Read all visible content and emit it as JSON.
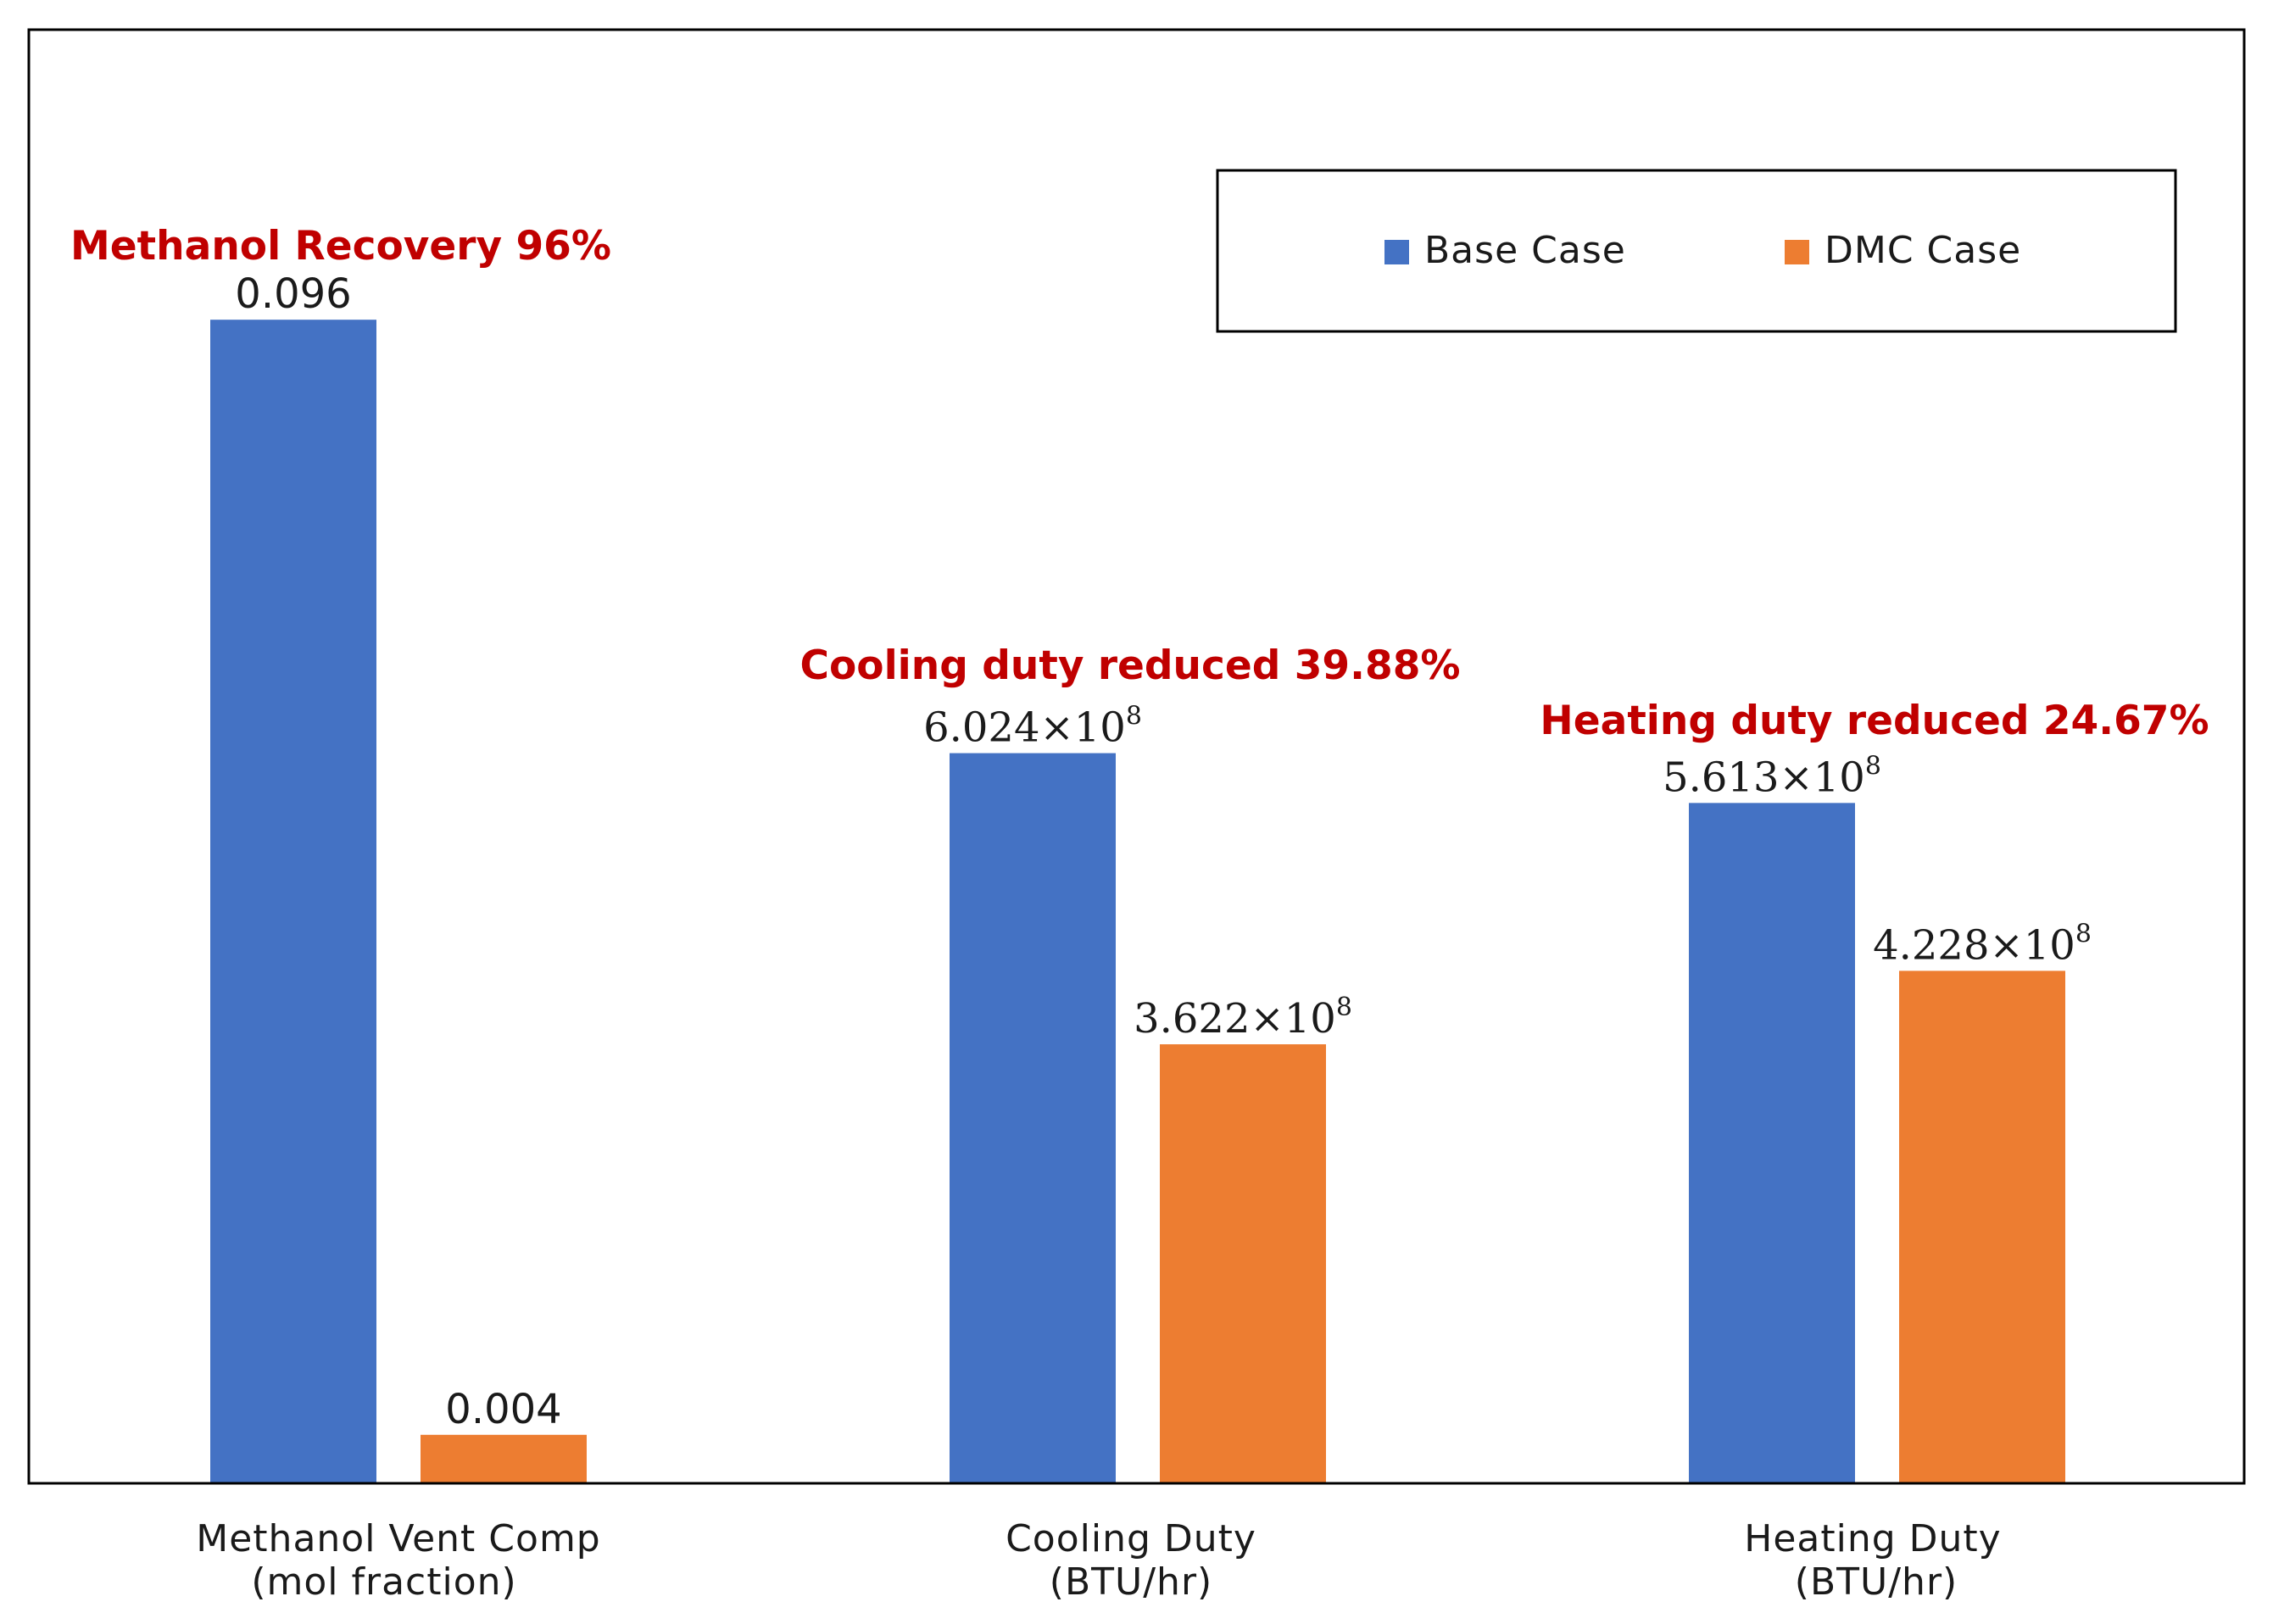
{
  "chart_data": {
    "type": "bar",
    "title": "",
    "xlabel": "",
    "ylabel": "",
    "grid": false,
    "legend_position": "top-right",
    "categories": [
      {
        "line1": "Methanol Vent Comp",
        "line2": "(mol fraction)"
      },
      {
        "line1": "Cooling Duty",
        "line2": "(BTU/hr)"
      },
      {
        "line1": "Heating Duty",
        "line2": "(BTU/hr)"
      }
    ],
    "series": [
      {
        "name": "Base Case",
        "color": "#4472c4",
        "values": [
          0.096,
          602400000,
          561300000
        ]
      },
      {
        "name": "DMC Case",
        "color": "#ed7d31",
        "values": [
          0.004,
          362200000,
          422800000
        ]
      }
    ],
    "panel_scales": [
      {
        "category": "Methanol Vent Comp",
        "ylim": [
          0,
          0.1
        ]
      },
      {
        "category": "Cooling Duty",
        "ylim": [
          0,
          1000000000
        ]
      },
      {
        "category": "Heating Duty",
        "ylim": [
          0,
          1000000000
        ]
      }
    ],
    "value_labels": [
      [
        {
          "text": "0.096",
          "mantissa": "",
          "sup": ""
        },
        {
          "text": "0.004",
          "mantissa": "",
          "sup": ""
        }
      ],
      [
        {
          "text": "",
          "mantissa": "6.024×10",
          "sup": "8"
        },
        {
          "text": "",
          "mantissa": "3.622×10",
          "sup": "8"
        }
      ],
      [
        {
          "text": "",
          "mantissa": "5.613×10",
          "sup": "8"
        },
        {
          "text": "",
          "mantissa": "4.228×10",
          "sup": "8"
        }
      ]
    ],
    "annotations": [
      "Methanol Recovery 96%",
      "Cooling duty reduced 39.88%",
      "Heating duty reduced 24.67%"
    ],
    "annotation_color": "#c00000"
  }
}
